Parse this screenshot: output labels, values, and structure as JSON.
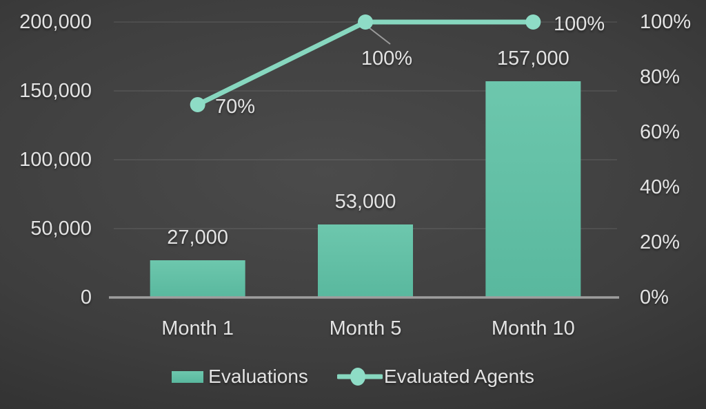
{
  "chart_data": {
    "type": "combo",
    "categories": [
      "Month 1",
      "Month 5",
      "Month 10"
    ],
    "series": [
      {
        "name": "Evaluations",
        "type": "bar",
        "axis": "left",
        "values": [
          27000,
          53000,
          157000
        ],
        "labels": [
          "27,000",
          "53,000",
          "157,000"
        ]
      },
      {
        "name": "Evaluated Agents",
        "type": "line",
        "axis": "right",
        "values": [
          70,
          100,
          100
        ],
        "labels": [
          "70%",
          "100%",
          "100%"
        ]
      }
    ],
    "left_axis": {
      "min": 0,
      "max": 200000,
      "tick_labels": [
        "0",
        "50,000",
        "100,000",
        "150,000",
        "200,000"
      ]
    },
    "right_axis": {
      "min": 0,
      "max": 100,
      "tick_labels": [
        "0%",
        "20%",
        "40%",
        "60%",
        "80%",
        "100%"
      ]
    },
    "legend": {
      "position": "bottom",
      "entries": [
        "Evaluations",
        "Evaluated Agents"
      ]
    },
    "grid": true,
    "title": ""
  },
  "colors": {
    "bar_top": "#6dc7ad",
    "bar_bottom": "#59b89e",
    "line": "#87d7bf",
    "marker": "#8edcc6",
    "text": "#e3e3e3",
    "grid": "rgba(255,255,255,0.10)",
    "axis": "#9e9e9e",
    "leader": "#9b9b9b",
    "bg_center": "#4b4b4b",
    "bg_edge": "#232323"
  }
}
